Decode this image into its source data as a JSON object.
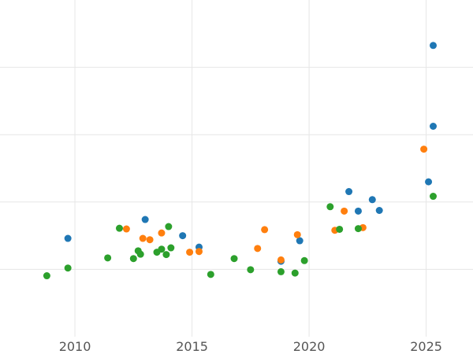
{
  "chart_data": {
    "type": "scatter",
    "title": "",
    "xlabel": "",
    "ylabel": "",
    "xlim": [
      2006.8,
      2027.0
    ],
    "ylim": [
      0,
      100
    ],
    "x_ticks": [
      2010,
      2015,
      2020,
      2025
    ],
    "x_tick_labels": [
      "2010",
      "2015",
      "2020",
      "2025"
    ],
    "y_gridlines": [
      20,
      40,
      60,
      80
    ],
    "grid": true,
    "legend": "none",
    "series": [
      {
        "color": "#1f77b4",
        "points": [
          {
            "x": 2009.7,
            "y": 29.2
          },
          {
            "x": 2013.0,
            "y": 34.8
          },
          {
            "x": 2014.6,
            "y": 30.0
          },
          {
            "x": 2015.3,
            "y": 26.6
          },
          {
            "x": 2018.8,
            "y": 22.4
          },
          {
            "x": 2019.6,
            "y": 28.5
          },
          {
            "x": 2021.7,
            "y": 43.1
          },
          {
            "x": 2022.1,
            "y": 37.3
          },
          {
            "x": 2022.7,
            "y": 40.7
          },
          {
            "x": 2023.0,
            "y": 37.5
          },
          {
            "x": 2025.1,
            "y": 46.0
          },
          {
            "x": 2025.3,
            "y": 62.5
          },
          {
            "x": 2025.3,
            "y": 86.5
          }
        ]
      },
      {
        "color": "#ff7f0e",
        "points": [
          {
            "x": 2012.2,
            "y": 32.0
          },
          {
            "x": 2012.9,
            "y": 29.2
          },
          {
            "x": 2013.2,
            "y": 28.8
          },
          {
            "x": 2013.7,
            "y": 30.8
          },
          {
            "x": 2014.9,
            "y": 25.1
          },
          {
            "x": 2015.3,
            "y": 25.3
          },
          {
            "x": 2017.8,
            "y": 26.2
          },
          {
            "x": 2018.1,
            "y": 31.8
          },
          {
            "x": 2018.8,
            "y": 22.8
          },
          {
            "x": 2019.5,
            "y": 30.3
          },
          {
            "x": 2021.1,
            "y": 31.6
          },
          {
            "x": 2021.5,
            "y": 37.3
          },
          {
            "x": 2022.3,
            "y": 32.4
          },
          {
            "x": 2024.9,
            "y": 55.7
          }
        ]
      },
      {
        "color": "#2ca02c",
        "points": [
          {
            "x": 2008.8,
            "y": 18.1
          },
          {
            "x": 2009.7,
            "y": 20.4
          },
          {
            "x": 2011.4,
            "y": 23.4
          },
          {
            "x": 2011.9,
            "y": 32.2
          },
          {
            "x": 2012.5,
            "y": 23.2
          },
          {
            "x": 2012.7,
            "y": 25.5
          },
          {
            "x": 2012.8,
            "y": 24.5
          },
          {
            "x": 2013.5,
            "y": 25.1
          },
          {
            "x": 2013.7,
            "y": 26.0
          },
          {
            "x": 2013.9,
            "y": 24.4
          },
          {
            "x": 2014.0,
            "y": 32.7
          },
          {
            "x": 2014.1,
            "y": 26.4
          },
          {
            "x": 2015.8,
            "y": 18.5
          },
          {
            "x": 2016.8,
            "y": 23.2
          },
          {
            "x": 2017.5,
            "y": 19.9
          },
          {
            "x": 2018.8,
            "y": 19.3
          },
          {
            "x": 2019.4,
            "y": 18.9
          },
          {
            "x": 2019.8,
            "y": 22.6
          },
          {
            "x": 2020.9,
            "y": 38.6
          },
          {
            "x": 2021.3,
            "y": 31.9
          },
          {
            "x": 2022.1,
            "y": 32.1
          },
          {
            "x": 2025.3,
            "y": 41.7
          }
        ]
      }
    ]
  }
}
